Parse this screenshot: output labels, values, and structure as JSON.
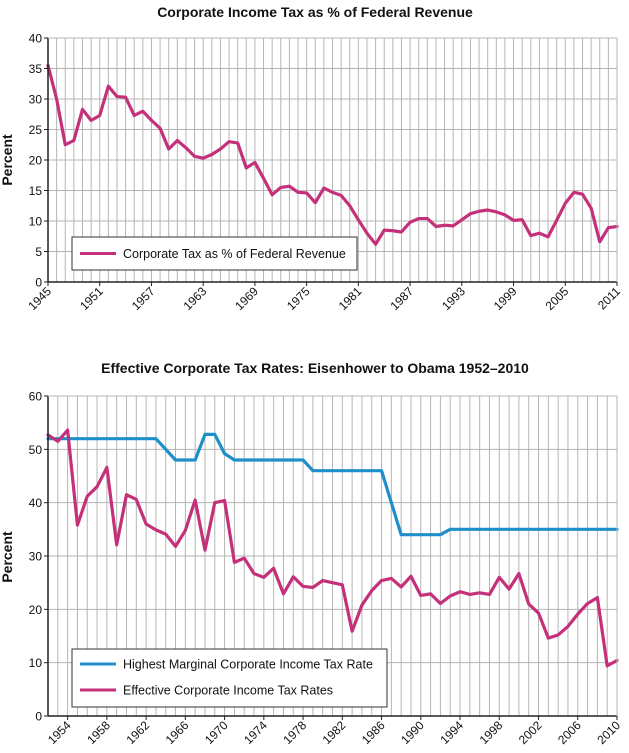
{
  "colors": {
    "magenta": "#c5307a",
    "blue": "#1f8fc9",
    "grid": "#b5b5b5",
    "axis": "#222222"
  },
  "chart_data": [
    {
      "type": "line",
      "title": "Corporate Income Tax as % of Federal Revenue",
      "ylabel": "Percent",
      "xlabel": "",
      "xlim": [
        1945,
        2011
      ],
      "ylim": [
        0,
        40
      ],
      "yticks": [
        0,
        5,
        10,
        15,
        20,
        25,
        30,
        35,
        40
      ],
      "xticks": [
        "1945",
        "1951",
        "1957",
        "1963",
        "1969",
        "1975",
        "1981",
        "1987",
        "1993",
        "1999",
        "2005",
        "2011"
      ],
      "grid": true,
      "legend_position": "bottom-left",
      "series": [
        {
          "name": "Corporate Tax as % of Federal Revenue",
          "color": "#c5307a",
          "x": [
            1945,
            1946,
            1947,
            1948,
            1949,
            1950,
            1951,
            1952,
            1953,
            1954,
            1955,
            1956,
            1957,
            1958,
            1959,
            1960,
            1961,
            1962,
            1963,
            1964,
            1965,
            1966,
            1967,
            1968,
            1969,
            1970,
            1971,
            1972,
            1973,
            1974,
            1975,
            1976,
            1977,
            1978,
            1979,
            1980,
            1981,
            1982,
            1983,
            1984,
            1985,
            1986,
            1987,
            1988,
            1989,
            1990,
            1991,
            1992,
            1993,
            1994,
            1995,
            1996,
            1997,
            1998,
            1999,
            2000,
            2001,
            2002,
            2003,
            2004,
            2005,
            2006,
            2007,
            2008,
            2009,
            2010,
            2011
          ],
          "y": [
            35.5,
            30,
            22.5,
            23.2,
            28.3,
            26.5,
            27.3,
            32.1,
            30.4,
            30.3,
            27.3,
            28.0,
            26.5,
            25.2,
            21.8,
            23.2,
            22.0,
            20.6,
            20.3,
            20.9,
            21.8,
            23.0,
            22.8,
            18.7,
            19.6,
            17.0,
            14.3,
            15.5,
            15.7,
            14.7,
            14.6,
            13.0,
            15.4,
            14.7,
            14.2,
            12.5,
            10.2,
            8.0,
            6.2,
            8.5,
            8.4,
            8.2,
            9.8,
            10.4,
            10.4,
            9.1,
            9.3,
            9.2,
            10.2,
            11.2,
            11.6,
            11.8,
            11.5,
            11.0,
            10.1,
            10.2,
            7.6,
            8.0,
            7.4,
            10.1,
            12.9,
            14.7,
            14.4,
            12.1,
            6.6,
            8.9,
            9.1
          ]
        }
      ]
    },
    {
      "type": "line",
      "title": "Effective Corporate Tax Rates: Eisenhower to Obama 1952–2010",
      "ylabel": "Percent",
      "xlabel": "",
      "xlim": [
        1952,
        2010
      ],
      "ylim": [
        0,
        60
      ],
      "yticks": [
        0,
        10,
        20,
        30,
        40,
        50,
        60
      ],
      "xticks": [
        "1954",
        "1958",
        "1962",
        "1966",
        "1970",
        "1974",
        "1978",
        "1982",
        "1986",
        "1990",
        "1994",
        "1998",
        "2002",
        "2006",
        "2010"
      ],
      "grid": true,
      "legend_position": "bottom-left",
      "series": [
        {
          "name": "Highest Marginal Corporate Income Tax Rate",
          "color": "#1f8fc9",
          "x": [
            1952,
            1953,
            1954,
            1955,
            1956,
            1957,
            1958,
            1959,
            1960,
            1961,
            1962,
            1963,
            1964,
            1965,
            1966,
            1967,
            1968,
            1969,
            1970,
            1971,
            1972,
            1973,
            1974,
            1975,
            1976,
            1977,
            1978,
            1979,
            1980,
            1981,
            1982,
            1983,
            1984,
            1985,
            1986,
            1987,
            1988,
            1989,
            1990,
            1991,
            1992,
            1993,
            1994,
            1995,
            1996,
            1997,
            1998,
            1999,
            2000,
            2001,
            2002,
            2003,
            2004,
            2005,
            2006,
            2007,
            2008,
            2009,
            2010
          ],
          "y": [
            52,
            52,
            52,
            52,
            52,
            52,
            52,
            52,
            52,
            52,
            52,
            52,
            50,
            48,
            48,
            48,
            52.8,
            52.8,
            49.2,
            48,
            48,
            48,
            48,
            48,
            48,
            48,
            48,
            46,
            46,
            46,
            46,
            46,
            46,
            46,
            46,
            40,
            34,
            34,
            34,
            34,
            34,
            35,
            35,
            35,
            35,
            35,
            35,
            35,
            35,
            35,
            35,
            35,
            35,
            35,
            35,
            35,
            35,
            35,
            35
          ]
        },
        {
          "name": "Effective Corporate Income Tax Rates",
          "color": "#c5307a",
          "x": [
            1952,
            1953,
            1954,
            1955,
            1956,
            1957,
            1958,
            1959,
            1960,
            1961,
            1962,
            1963,
            1964,
            1965,
            1966,
            1967,
            1968,
            1969,
            1970,
            1971,
            1972,
            1973,
            1974,
            1975,
            1976,
            1977,
            1978,
            1979,
            1980,
            1981,
            1982,
            1983,
            1984,
            1985,
            1986,
            1987,
            1988,
            1989,
            1990,
            1991,
            1992,
            1993,
            1994,
            1995,
            1996,
            1997,
            1998,
            1999,
            2000,
            2001,
            2002,
            2003,
            2004,
            2005,
            2006,
            2007,
            2008,
            2009,
            2010
          ],
          "y": [
            52.7,
            51.5,
            53.6,
            35.8,
            41.2,
            43.0,
            46.6,
            32.1,
            41.5,
            40.6,
            36.0,
            34.9,
            34.1,
            31.8,
            34.8,
            40.5,
            31.1,
            40.0,
            40.4,
            28.8,
            29.6,
            26.7,
            26.0,
            27.7,
            22.9,
            26.1,
            24.3,
            24.1,
            25.4,
            25.0,
            24.6,
            15.9,
            20.8,
            23.5,
            25.4,
            25.8,
            24.2,
            26.2,
            22.6,
            22.9,
            21.1,
            22.5,
            23.3,
            22.8,
            23.1,
            22.8,
            26.0,
            23.8,
            26.7,
            21.0,
            19.3,
            14.6,
            15.2,
            16.8,
            19.1,
            21.1,
            22.2,
            9.4,
            10.4
          ]
        }
      ]
    }
  ]
}
